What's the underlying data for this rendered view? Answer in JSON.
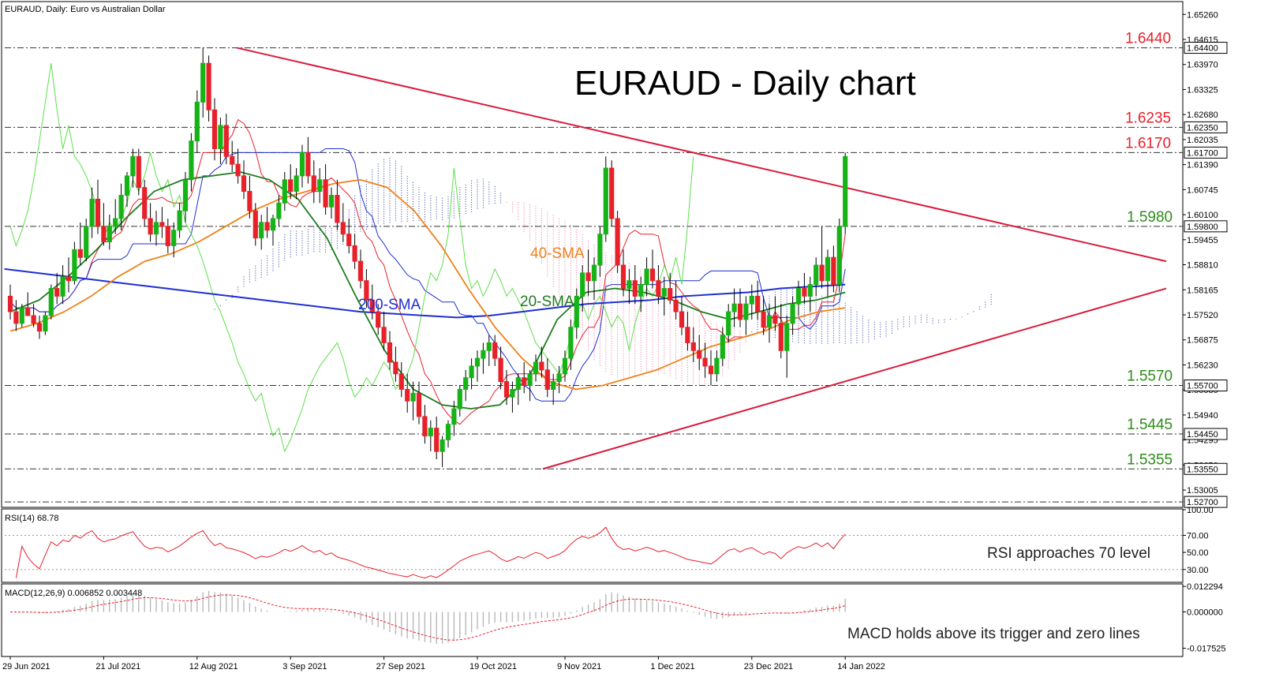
{
  "header": {
    "symbol_line": "EURAUD, Daily:  Euro vs Australian Dollar",
    "rsi_line": "RSI(14) 68.78",
    "macd_line": "MACD(12,26,9) 0.006852 0.003448"
  },
  "colors": {
    "bullish": "#16b316",
    "bearish": "#e8202a",
    "sma200": "#1f2fcf",
    "sma40": "#f0821a",
    "sma20": "#1f7a1f",
    "trendline": "#d81b3c",
    "level_red": "#e8202a",
    "level_green": "#2d8c1a",
    "tenkan": "#e8202a",
    "kijun": "#1f2fcf",
    "chikou": "#5ce04a",
    "cloud_bull": "#1f2f9f",
    "cloud_bear": "#e86aa0"
  },
  "chart_data": {
    "type": "candlestick",
    "title": "EURAUD - Daily chart",
    "price_axis": {
      "ylim": [
        1.526,
        1.6555
      ],
      "ticks": [
        "1.65260",
        "1.64615",
        "1.63970",
        "1.63325",
        "1.62680",
        "1.62035",
        "1.61390",
        "1.60745",
        "1.60100",
        "1.59455",
        "1.58810",
        "1.58165",
        "1.57520",
        "1.56875",
        "1.56230",
        "1.55585",
        "1.54940",
        "1.54295",
        "1.53650",
        "1.53005"
      ],
      "boxed_ticks": [
        "1.64400",
        "1.62350",
        "1.61700",
        "1.59800",
        "1.55700",
        "1.54450",
        "1.53550",
        "1.52700"
      ]
    },
    "levels": [
      {
        "label": "1.6440",
        "value": 1.644,
        "color": "red"
      },
      {
        "label": "1.6235",
        "value": 1.6235,
        "color": "red"
      },
      {
        "label": "1.6170",
        "value": 1.617,
        "color": "red"
      },
      {
        "label": "1.5980",
        "value": 1.598,
        "color": "green"
      },
      {
        "label": "1.5570",
        "value": 1.557,
        "color": "green"
      },
      {
        "label": "1.5445",
        "value": 1.5445,
        "color": "green"
      },
      {
        "label": "1.5355",
        "value": 1.5355,
        "color": "green"
      },
      {
        "label": "",
        "value": 1.527,
        "color": "none"
      }
    ],
    "x_labels": [
      "29 Jun 2021",
      "21 Jul 2021",
      "12 Aug 2021",
      "3 Sep 2021",
      "27 Sep 2021",
      "19 Oct 2021",
      "9 Nov 2021",
      "1 Dec 2021",
      "23 Dec 2021",
      "14 Jan 2022"
    ],
    "x_label_bars": [
      0,
      16,
      32,
      48,
      64,
      80,
      95,
      111,
      127,
      143
    ],
    "ohlc": [
      [
        1.58,
        1.583,
        1.574,
        1.576
      ],
      [
        1.576,
        1.579,
        1.571,
        1.573
      ],
      [
        1.573,
        1.578,
        1.572,
        1.577
      ],
      [
        1.577,
        1.581,
        1.575,
        1.575
      ],
      [
        1.575,
        1.578,
        1.572,
        1.573
      ],
      [
        1.573,
        1.575,
        1.569,
        1.571
      ],
      [
        1.571,
        1.576,
        1.57,
        1.575
      ],
      [
        1.575,
        1.583,
        1.574,
        1.582
      ],
      [
        1.582,
        1.586,
        1.578,
        1.58
      ],
      [
        1.58,
        1.588,
        1.578,
        1.585
      ],
      [
        1.585,
        1.59,
        1.581,
        1.584
      ],
      [
        1.584,
        1.594,
        1.583,
        1.592
      ],
      [
        1.592,
        1.599,
        1.588,
        1.59
      ],
      [
        1.59,
        1.6,
        1.589,
        1.598
      ],
      [
        1.598,
        1.608,
        1.595,
        1.605
      ],
      [
        1.605,
        1.61,
        1.596,
        1.598
      ],
      [
        1.598,
        1.604,
        1.593,
        1.594
      ],
      [
        1.594,
        1.601,
        1.592,
        1.598
      ],
      [
        1.598,
        1.605,
        1.596,
        1.6
      ],
      [
        1.6,
        1.609,
        1.597,
        1.606
      ],
      [
        1.606,
        1.612,
        1.603,
        1.611
      ],
      [
        1.611,
        1.618,
        1.608,
        1.616
      ],
      [
        1.616,
        1.618,
        1.606,
        1.608
      ],
      [
        1.608,
        1.61,
        1.598,
        1.6
      ],
      [
        1.6,
        1.604,
        1.594,
        1.596
      ],
      [
        1.596,
        1.602,
        1.593,
        1.599
      ],
      [
        1.599,
        1.603,
        1.595,
        1.598
      ],
      [
        1.598,
        1.6,
        1.591,
        1.593
      ],
      [
        1.593,
        1.599,
        1.59,
        1.597
      ],
      [
        1.597,
        1.604,
        1.595,
        1.602
      ],
      [
        1.602,
        1.612,
        1.599,
        1.61
      ],
      [
        1.61,
        1.622,
        1.607,
        1.62
      ],
      [
        1.62,
        1.633,
        1.617,
        1.63
      ],
      [
        1.63,
        1.644,
        1.626,
        1.64
      ],
      [
        1.64,
        1.642,
        1.625,
        1.628
      ],
      [
        1.628,
        1.631,
        1.615,
        1.618
      ],
      [
        1.618,
        1.626,
        1.614,
        1.624
      ],
      [
        1.624,
        1.627,
        1.614,
        1.616
      ],
      [
        1.616,
        1.62,
        1.612,
        1.614
      ],
      [
        1.614,
        1.618,
        1.609,
        1.611
      ],
      [
        1.611,
        1.615,
        1.605,
        1.607
      ],
      [
        1.607,
        1.611,
        1.6,
        1.602
      ],
      [
        1.602,
        1.604,
        1.593,
        1.595
      ],
      [
        1.595,
        1.601,
        1.592,
        1.599
      ],
      [
        1.599,
        1.603,
        1.595,
        1.597
      ],
      [
        1.597,
        1.601,
        1.593,
        1.6
      ],
      [
        1.6,
        1.606,
        1.598,
        1.604
      ],
      [
        1.604,
        1.612,
        1.602,
        1.61
      ],
      [
        1.61,
        1.614,
        1.605,
        1.607
      ],
      [
        1.607,
        1.613,
        1.605,
        1.611
      ],
      [
        1.611,
        1.619,
        1.608,
        1.617
      ],
      [
        1.617,
        1.621,
        1.609,
        1.611
      ],
      [
        1.611,
        1.615,
        1.604,
        1.607
      ],
      [
        1.607,
        1.613,
        1.604,
        1.61
      ],
      [
        1.61,
        1.614,
        1.601,
        1.603
      ],
      [
        1.603,
        1.608,
        1.6,
        1.606
      ],
      [
        1.606,
        1.61,
        1.597,
        1.599
      ],
      [
        1.599,
        1.604,
        1.594,
        1.596
      ],
      [
        1.596,
        1.6,
        1.591,
        1.593
      ],
      [
        1.593,
        1.596,
        1.587,
        1.589
      ],
      [
        1.589,
        1.592,
        1.582,
        1.584
      ],
      [
        1.584,
        1.587,
        1.577,
        1.579
      ],
      [
        1.579,
        1.583,
        1.574,
        1.576
      ],
      [
        1.576,
        1.578,
        1.57,
        1.572
      ],
      [
        1.572,
        1.576,
        1.566,
        1.568
      ],
      [
        1.568,
        1.571,
        1.561,
        1.563
      ],
      [
        1.563,
        1.567,
        1.558,
        1.56
      ],
      [
        1.56,
        1.563,
        1.554,
        1.556
      ],
      [
        1.556,
        1.56,
        1.55,
        1.553
      ],
      [
        1.553,
        1.558,
        1.548,
        1.555
      ],
      [
        1.555,
        1.558,
        1.547,
        1.549
      ],
      [
        1.549,
        1.552,
        1.542,
        1.544
      ],
      [
        1.544,
        1.548,
        1.54,
        1.546
      ],
      [
        1.546,
        1.549,
        1.538,
        1.54
      ],
      [
        1.54,
        1.544,
        1.536,
        1.543
      ],
      [
        1.543,
        1.548,
        1.541,
        1.547
      ],
      [
        1.547,
        1.553,
        1.544,
        1.551
      ],
      [
        1.551,
        1.557,
        1.549,
        1.556
      ],
      [
        1.556,
        1.561,
        1.553,
        1.559
      ],
      [
        1.559,
        1.564,
        1.556,
        1.562
      ],
      [
        1.562,
        1.566,
        1.558,
        1.564
      ],
      [
        1.564,
        1.568,
        1.56,
        1.566
      ],
      [
        1.566,
        1.57,
        1.562,
        1.568
      ],
      [
        1.568,
        1.57,
        1.562,
        1.564
      ],
      [
        1.564,
        1.567,
        1.556,
        1.558
      ],
      [
        1.558,
        1.561,
        1.552,
        1.554
      ],
      [
        1.554,
        1.558,
        1.55,
        1.556
      ],
      [
        1.556,
        1.56,
        1.552,
        1.559
      ],
      [
        1.559,
        1.563,
        1.555,
        1.557
      ],
      [
        1.557,
        1.561,
        1.553,
        1.56
      ],
      [
        1.56,
        1.565,
        1.558,
        1.563
      ],
      [
        1.563,
        1.567,
        1.559,
        1.561
      ],
      [
        1.561,
        1.564,
        1.554,
        1.556
      ],
      [
        1.556,
        1.56,
        1.552,
        1.558
      ],
      [
        1.558,
        1.562,
        1.555,
        1.56
      ],
      [
        1.56,
        1.566,
        1.558,
        1.564
      ],
      [
        1.564,
        1.574,
        1.561,
        1.572
      ],
      [
        1.572,
        1.582,
        1.569,
        1.58
      ],
      [
        1.58,
        1.588,
        1.576,
        1.586
      ],
      [
        1.586,
        1.592,
        1.58,
        1.584
      ],
      [
        1.584,
        1.59,
        1.579,
        1.588
      ],
      [
        1.588,
        1.598,
        1.585,
        1.596
      ],
      [
        1.596,
        1.616,
        1.594,
        1.613
      ],
      [
        1.613,
        1.615,
        1.598,
        1.6
      ],
      [
        1.6,
        1.602,
        1.586,
        1.588
      ],
      [
        1.588,
        1.592,
        1.58,
        1.582
      ],
      [
        1.582,
        1.587,
        1.578,
        1.584
      ],
      [
        1.584,
        1.588,
        1.578,
        1.58
      ],
      [
        1.58,
        1.585,
        1.576,
        1.583
      ],
      [
        1.583,
        1.59,
        1.58,
        1.587
      ],
      [
        1.587,
        1.592,
        1.582,
        1.584
      ],
      [
        1.584,
        1.588,
        1.578,
        1.58
      ],
      [
        1.58,
        1.585,
        1.575,
        1.582
      ],
      [
        1.582,
        1.586,
        1.578,
        1.579
      ],
      [
        1.579,
        1.584,
        1.574,
        1.576
      ],
      [
        1.576,
        1.58,
        1.57,
        1.572
      ],
      [
        1.572,
        1.576,
        1.566,
        1.568
      ],
      [
        1.568,
        1.572,
        1.563,
        1.566
      ],
      [
        1.566,
        1.57,
        1.561,
        1.564
      ],
      [
        1.564,
        1.568,
        1.559,
        1.562
      ],
      [
        1.562,
        1.566,
        1.557,
        1.56
      ],
      [
        1.56,
        1.566,
        1.558,
        1.564
      ],
      [
        1.564,
        1.572,
        1.562,
        1.57
      ],
      [
        1.57,
        1.578,
        1.568,
        1.576
      ],
      [
        1.576,
        1.582,
        1.572,
        1.578
      ],
      [
        1.578,
        1.582,
        1.572,
        1.574
      ],
      [
        1.574,
        1.58,
        1.57,
        1.578
      ],
      [
        1.578,
        1.583,
        1.574,
        1.58
      ],
      [
        1.58,
        1.584,
        1.574,
        1.576
      ],
      [
        1.576,
        1.58,
        1.57,
        1.572
      ],
      [
        1.572,
        1.578,
        1.568,
        1.575
      ],
      [
        1.575,
        1.58,
        1.571,
        1.573
      ],
      [
        1.573,
        1.578,
        1.564,
        1.566
      ],
      [
        1.566,
        1.575,
        1.559,
        1.573
      ],
      [
        1.573,
        1.58,
        1.57,
        1.578
      ],
      [
        1.578,
        1.584,
        1.575,
        1.582
      ],
      [
        1.582,
        1.586,
        1.578,
        1.58
      ],
      [
        1.58,
        1.585,
        1.576,
        1.583
      ],
      [
        1.583,
        1.59,
        1.58,
        1.588
      ],
      [
        1.588,
        1.598,
        1.582,
        1.584
      ],
      [
        1.584,
        1.592,
        1.58,
        1.59
      ],
      [
        1.59,
        1.593,
        1.581,
        1.583
      ],
      [
        1.583,
        1.6,
        1.581,
        1.598
      ],
      [
        1.598,
        1.617,
        1.596,
        1.616
      ]
    ],
    "sma200": [
      1.587,
      1.586,
      1.585,
      1.584,
      1.583,
      1.582,
      1.581,
      1.58,
      1.579,
      1.578,
      1.577,
      1.576,
      1.5755,
      1.575,
      1.5745,
      1.575,
      1.576,
      1.577,
      1.578,
      1.5785,
      1.579,
      1.58,
      1.5805,
      1.581,
      1.582,
      1.5825,
      1.583
    ],
    "sma40": [
      1.571,
      1.573,
      1.576,
      1.58,
      1.585,
      1.589,
      1.591,
      1.594,
      1.598,
      1.602,
      1.605,
      1.607,
      1.609,
      1.61,
      1.608,
      1.602,
      1.593,
      1.582,
      1.572,
      1.564,
      1.558,
      1.556,
      1.557,
      1.559,
      1.561,
      1.564,
      1.567,
      1.569,
      1.571,
      1.574,
      1.576,
      1.577
    ],
    "sma20": [
      1.576,
      1.579,
      1.585,
      1.592,
      1.6,
      1.607,
      1.61,
      1.611,
      1.612,
      1.61,
      1.605,
      1.595,
      1.58,
      1.566,
      1.556,
      1.552,
      1.551,
      1.552,
      1.559,
      1.574,
      1.581,
      1.582,
      1.581,
      1.579,
      1.576,
      1.574,
      1.576,
      1.578,
      1.579,
      1.581
    ],
    "rsi": {
      "value": 68.78,
      "ylim": [
        15,
        100
      ],
      "ticks": [
        "100.00",
        "70.00",
        "50.00",
        "30.00"
      ],
      "tick_values": [
        100,
        70,
        50,
        30
      ]
    },
    "macd": {
      "macd": 0.006852,
      "signal": 0.003448,
      "ylim": [
        -0.0215,
        0.0135
      ],
      "ticks": [
        "0.012294",
        "0.000000",
        "-0.017525"
      ],
      "tick_values": [
        0.012294,
        0.0,
        -0.017525
      ]
    },
    "annotations": {
      "sma200_label": "200-SMA",
      "sma40_label": "40-SMA",
      "sma20_label": "20-SMA",
      "rsi_note": "RSI approaches 70 level",
      "macd_note": "MACD holds above its trigger and zero lines"
    }
  }
}
